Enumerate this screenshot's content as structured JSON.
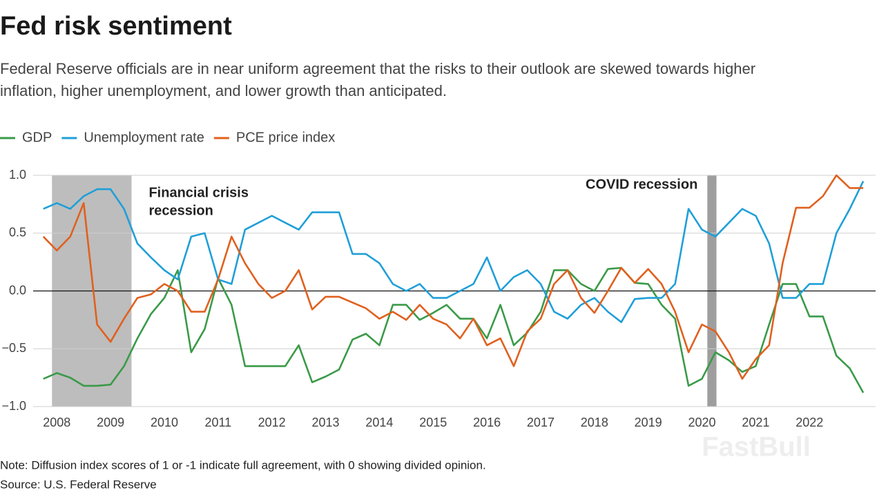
{
  "chart_data": {
    "type": "line",
    "title": "Fed risk sentiment",
    "subtitle": [
      "Federal Reserve officials are in near uniform agreement that the risks to their outlook are skewed towards higher",
      "inflation, higher unemployment, and lower growth than anticipated."
    ],
    "x": [
      2007.75,
      2008,
      2008.25,
      2008.5,
      2008.75,
      2009,
      2009.25,
      2009.5,
      2009.75,
      2010,
      2010.25,
      2010.5,
      2010.75,
      2011,
      2011.25,
      2011.5,
      2011.75,
      2012,
      2012.25,
      2012.5,
      2012.75,
      2013,
      2013.25,
      2013.5,
      2013.75,
      2014,
      2014.25,
      2014.5,
      2014.75,
      2015,
      2015.25,
      2015.5,
      2015.75,
      2016,
      2016.25,
      2016.5,
      2016.75,
      2017,
      2017.25,
      2017.5,
      2017.75,
      2018,
      2018.25,
      2018.5,
      2018.75,
      2019,
      2019.25,
      2019.5,
      2019.75,
      2020,
      2020.25,
      2020.5,
      2020.75,
      2021,
      2021.25,
      2021.5,
      2021.75,
      2022,
      2022.25,
      2022.5,
      2022.75,
      2023
    ],
    "series": [
      {
        "name": "GDP",
        "color": "#3a9a48",
        "values": [
          -0.76,
          -0.71,
          -0.75,
          -0.82,
          -0.82,
          -0.81,
          -0.65,
          -0.41,
          -0.2,
          -0.06,
          0.18,
          -0.53,
          -0.33,
          0.11,
          -0.12,
          -0.65,
          -0.65,
          -0.65,
          -0.65,
          -0.47,
          -0.79,
          -0.74,
          -0.68,
          -0.42,
          -0.37,
          -0.47,
          -0.12,
          -0.12,
          -0.25,
          -0.19,
          -0.12,
          -0.24,
          -0.24,
          -0.41,
          -0.12,
          -0.47,
          -0.36,
          -0.18,
          0.18,
          0.18,
          0.06,
          0,
          0.19,
          0.2,
          0.07,
          0.06,
          -0.12,
          -0.24,
          -0.82,
          -0.76,
          -0.53,
          -0.6,
          -0.7,
          -0.65,
          -0.29,
          0.06,
          0.06,
          -0.22,
          -0.22,
          -0.56,
          -0.67,
          -0.88
        ]
      },
      {
        "name": "Unemployment rate",
        "color": "#1f9fd8",
        "values": [
          0.71,
          0.76,
          0.71,
          0.82,
          0.88,
          0.88,
          0.71,
          0.41,
          0.29,
          0.18,
          0.1,
          0.47,
          0.5,
          0.1,
          0.06,
          0.53,
          0.59,
          0.65,
          0.59,
          0.53,
          0.68,
          0.68,
          0.68,
          0.32,
          0.32,
          0.24,
          0.06,
          0,
          0.06,
          -0.06,
          -0.06,
          0,
          0.06,
          0.29,
          0,
          0.12,
          0.18,
          0.06,
          -0.18,
          -0.24,
          -0.12,
          -0.06,
          -0.18,
          -0.27,
          -0.07,
          -0.06,
          -0.06,
          0.06,
          0.71,
          0.53,
          0.47,
          0.59,
          0.71,
          0.65,
          0.41,
          -0.06,
          -0.06,
          0.06,
          0.06,
          0.5,
          0.71,
          0.95
        ]
      },
      {
        "name": "PCE price index",
        "color": "#e0601e",
        "values": [
          0.47,
          0.35,
          0.47,
          0.76,
          -0.29,
          -0.44,
          -0.24,
          -0.06,
          -0.03,
          0.06,
          0,
          -0.18,
          -0.18,
          0.1,
          0.47,
          0.24,
          0.06,
          -0.06,
          0,
          0.18,
          -0.16,
          -0.05,
          -0.05,
          -0.1,
          -0.15,
          -0.24,
          -0.18,
          -0.25,
          -0.12,
          -0.24,
          -0.29,
          -0.41,
          -0.24,
          -0.47,
          -0.41,
          -0.65,
          -0.35,
          -0.24,
          0.06,
          0.18,
          -0.06,
          -0.19,
          0,
          0.2,
          0.07,
          0.19,
          0.06,
          -0.18,
          -0.53,
          -0.29,
          -0.35,
          -0.53,
          -0.76,
          -0.59,
          -0.47,
          0.24,
          0.72,
          0.72,
          0.82,
          1,
          0.89,
          0.89
        ]
      }
    ],
    "xlim": [
      2007.56,
      2023.23
    ],
    "xticks": [
      2008,
      2009,
      2010,
      2011,
      2012,
      2013,
      2014,
      2015,
      2016,
      2017,
      2018,
      2019,
      2020,
      2021,
      2022
    ],
    "ylim": [
      -1,
      1
    ],
    "yticks": [
      {
        "value": 1,
        "label": "1.0"
      },
      0.5,
      {
        "value": 0,
        "label": "0.0"
      },
      {
        "value": -0.5,
        "label": "−0.5"
      },
      {
        "value": -1,
        "label": "−1.0"
      }
    ],
    "grid": true,
    "shaded": [
      {
        "start": 2007.91,
        "end": 2009.39,
        "color": "#bdbdbd",
        "label": [
          "Financial crisis",
          "recession"
        ]
      },
      {
        "start": 2020.1,
        "end": 2020.27,
        "color": "#9e9e9e",
        "label": [
          "COVID recession"
        ]
      }
    ],
    "note": "Note: Diffusion index scores of 1 or -1 indicate full agreement, with 0 showing divided opinion.",
    "source": "Source: U.S. Federal Reserve",
    "watermark": "FastBull"
  }
}
